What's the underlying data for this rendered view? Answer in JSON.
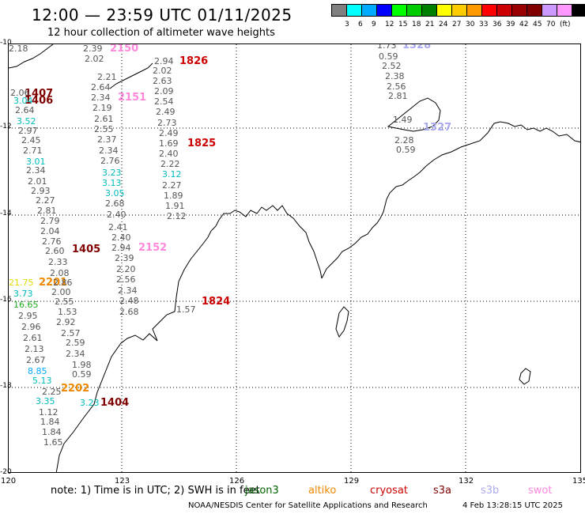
{
  "title": "12:00 — 23:59 UTC 01/11/2025",
  "subtitle": "12 hour collection of altimeter wave heights",
  "colorbar": {
    "colors": [
      "#808080",
      "#00ffff",
      "#00aaff",
      "#0000ff",
      "#00ff00",
      "#00cc00",
      "#008000",
      "#ffff00",
      "#ffcc00",
      "#ff9900",
      "#ff0000",
      "#cc0000",
      "#990000",
      "#800000",
      "#cc99ff",
      "#ff99ff",
      "#000000"
    ],
    "labels": [
      "3",
      "6",
      "9",
      "12",
      "15",
      "18",
      "21",
      "24",
      "27",
      "30",
      "33",
      "36",
      "39",
      "42",
      "45",
      "70"
    ],
    "unit": "(ft)"
  },
  "axes": {
    "lat_labels": [
      "-10",
      "-12",
      "-14",
      "-16",
      "-18",
      "-20"
    ],
    "lon_labels": [
      "120",
      "123",
      "126",
      "129",
      "132",
      "135"
    ]
  },
  "passes": [
    {
      "text": "2150",
      "color": "#ff88dd"
    },
    {
      "text": "1826",
      "color": "#cc0000"
    },
    {
      "text": "1407",
      "color": "#800000"
    },
    {
      "text": "1406",
      "color": "#800000"
    },
    {
      "text": "2151",
      "color": "#ff88dd"
    },
    {
      "text": "1825",
      "color": "#cc0000"
    },
    {
      "text": "1405",
      "color": "#800000"
    },
    {
      "text": "2152",
      "color": "#ff88dd"
    },
    {
      "text": "2201",
      "color": "#ee8800"
    },
    {
      "text": "1824",
      "color": "#cc0000"
    },
    {
      "text": "2202",
      "color": "#ee8800"
    },
    {
      "text": "1404",
      "color": "#800000"
    },
    {
      "text": "1328",
      "color": "#aaaaee"
    },
    {
      "text": "1327",
      "color": "#aaaaee"
    }
  ],
  "wave_heights": [
    {
      "text": "2.39",
      "color": "#555555"
    },
    {
      "text": "2.02",
      "color": "#555555"
    },
    {
      "text": "2.21",
      "color": "#555555"
    },
    {
      "text": "2.64",
      "color": "#555555"
    },
    {
      "text": "2.34",
      "color": "#555555"
    },
    {
      "text": "2.19",
      "color": "#555555"
    },
    {
      "text": "2.61",
      "color": "#555555"
    },
    {
      "text": "2.55",
      "color": "#555555"
    },
    {
      "text": "2.37",
      "color": "#555555"
    },
    {
      "text": "2.34",
      "color": "#555555"
    },
    {
      "text": "2.76",
      "color": "#555555"
    },
    {
      "text": "3.23",
      "color": "#00bbbb"
    },
    {
      "text": "3.13",
      "color": "#00bbbb"
    },
    {
      "text": "3.05",
      "color": "#00bbbb"
    },
    {
      "text": "2.68",
      "color": "#555555"
    },
    {
      "text": "2.40",
      "color": "#555555"
    },
    {
      "text": "2.41",
      "color": "#555555"
    },
    {
      "text": "2.40",
      "color": "#555555"
    },
    {
      "text": "2.94",
      "color": "#555555"
    },
    {
      "text": "2.39",
      "color": "#555555"
    },
    {
      "text": "2.20",
      "color": "#555555"
    },
    {
      "text": "2.56",
      "color": "#555555"
    },
    {
      "text": "2.34",
      "color": "#555555"
    },
    {
      "text": "2.48",
      "color": "#555555"
    },
    {
      "text": "2.68",
      "color": "#555555"
    },
    {
      "text": "2.94",
      "color": "#555555"
    },
    {
      "text": "2.02",
      "color": "#555555"
    },
    {
      "text": "2.63",
      "color": "#555555"
    },
    {
      "text": "2.09",
      "color": "#555555"
    },
    {
      "text": "2.54",
      "color": "#555555"
    },
    {
      "text": "2.49",
      "color": "#555555"
    },
    {
      "text": "2.73",
      "color": "#555555"
    },
    {
      "text": "2.49",
      "color": "#555555"
    },
    {
      "text": "1.69",
      "color": "#555555"
    },
    {
      "text": "2.40",
      "color": "#555555"
    },
    {
      "text": "2.22",
      "color": "#555555"
    },
    {
      "text": "3.12",
      "color": "#00bbbb"
    },
    {
      "text": "2.27",
      "color": "#555555"
    },
    {
      "text": "1.89",
      "color": "#555555"
    },
    {
      "text": "1.91",
      "color": "#555555"
    },
    {
      "text": "2.12",
      "color": "#555555"
    },
    {
      "text": "1.57",
      "color": "#555555"
    },
    {
      "text": "2.06",
      "color": "#555555"
    },
    {
      "text": "3.04",
      "color": "#00bbbb"
    },
    {
      "text": "2.64",
      "color": "#555555"
    },
    {
      "text": "3.52",
      "color": "#00bbbb"
    },
    {
      "text": "2.97",
      "color": "#555555"
    },
    {
      "text": "2.45",
      "color": "#555555"
    },
    {
      "text": "2.71",
      "color": "#555555"
    },
    {
      "text": "3.01",
      "color": "#00bbbb"
    },
    {
      "text": "2.34",
      "color": "#555555"
    },
    {
      "text": "2.01",
      "color": "#555555"
    },
    {
      "text": "2.93",
      "color": "#555555"
    },
    {
      "text": "2.27",
      "color": "#555555"
    },
    {
      "text": "2.81",
      "color": "#555555"
    },
    {
      "text": "2.79",
      "color": "#555555"
    },
    {
      "text": "2.04",
      "color": "#555555"
    },
    {
      "text": "2.76",
      "color": "#555555"
    },
    {
      "text": "2.60",
      "color": "#555555"
    },
    {
      "text": "2.33",
      "color": "#555555"
    },
    {
      "text": "2.08",
      "color": "#555555"
    },
    {
      "text": "2.86",
      "color": "#555555"
    },
    {
      "text": "21.75",
      "color": "#dddd00"
    },
    {
      "text": "2.00",
      "color": "#555555"
    },
    {
      "text": "3.73",
      "color": "#00bbbb"
    },
    {
      "text": "2.55",
      "color": "#555555"
    },
    {
      "text": "16.65",
      "color": "#22aa22"
    },
    {
      "text": "1.53",
      "color": "#555555"
    },
    {
      "text": "2.95",
      "color": "#555555"
    },
    {
      "text": "2.92",
      "color": "#555555"
    },
    {
      "text": "2.96",
      "color": "#555555"
    },
    {
      "text": "2.57",
      "color": "#555555"
    },
    {
      "text": "2.61",
      "color": "#555555"
    },
    {
      "text": "2.59",
      "color": "#555555"
    },
    {
      "text": "2.13",
      "color": "#555555"
    },
    {
      "text": "2.34",
      "color": "#555555"
    },
    {
      "text": "2.67",
      "color": "#555555"
    },
    {
      "text": "1.98",
      "color": "#555555"
    },
    {
      "text": "8.85",
      "color": "#00aaff"
    },
    {
      "text": "0.59",
      "color": "#555555"
    },
    {
      "text": "5.13",
      "color": "#00bbbb"
    },
    {
      "text": "2.25",
      "color": "#555555"
    },
    {
      "text": "3.35",
      "color": "#00bbbb"
    },
    {
      "text": "3.23",
      "color": "#00bbbb"
    },
    {
      "text": "1.12",
      "color": "#555555"
    },
    {
      "text": "1.84",
      "color": "#555555"
    },
    {
      "text": "1.84",
      "color": "#555555"
    },
    {
      "text": "1.65",
      "color": "#555555"
    },
    {
      "text": "1.73",
      "color": "#555555"
    },
    {
      "text": "0.59",
      "color": "#555555"
    },
    {
      "text": "2.52",
      "color": "#555555"
    },
    {
      "text": "2.38",
      "color": "#555555"
    },
    {
      "text": "2.56",
      "color": "#555555"
    },
    {
      "text": "2.81",
      "color": "#555555"
    },
    {
      "text": "1.49",
      "color": "#555555"
    },
    {
      "text": "2.28",
      "color": "#555555"
    },
    {
      "text": "0.59",
      "color": "#555555"
    },
    {
      "text": "2.18",
      "color": "#555555"
    }
  ],
  "footer": {
    "note": "note:  1) Time is in UTC;  2) SWH is in feet",
    "satellites": [
      {
        "name": "jason3",
        "color": "#006600"
      },
      {
        "name": "altiko",
        "color": "#ee8800"
      },
      {
        "name": "cryosat",
        "color": "#cc0000"
      },
      {
        "name": "s3a",
        "color": "#800000"
      },
      {
        "name": "s3b",
        "color": "#aaaaee"
      },
      {
        "name": "swot",
        "color": "#ff88dd"
      }
    ],
    "credit": "NOAA/NESDIS Center for Satellite Applications and Research",
    "timestamp": "4 Feb 13:28:15 UTC 2025"
  }
}
